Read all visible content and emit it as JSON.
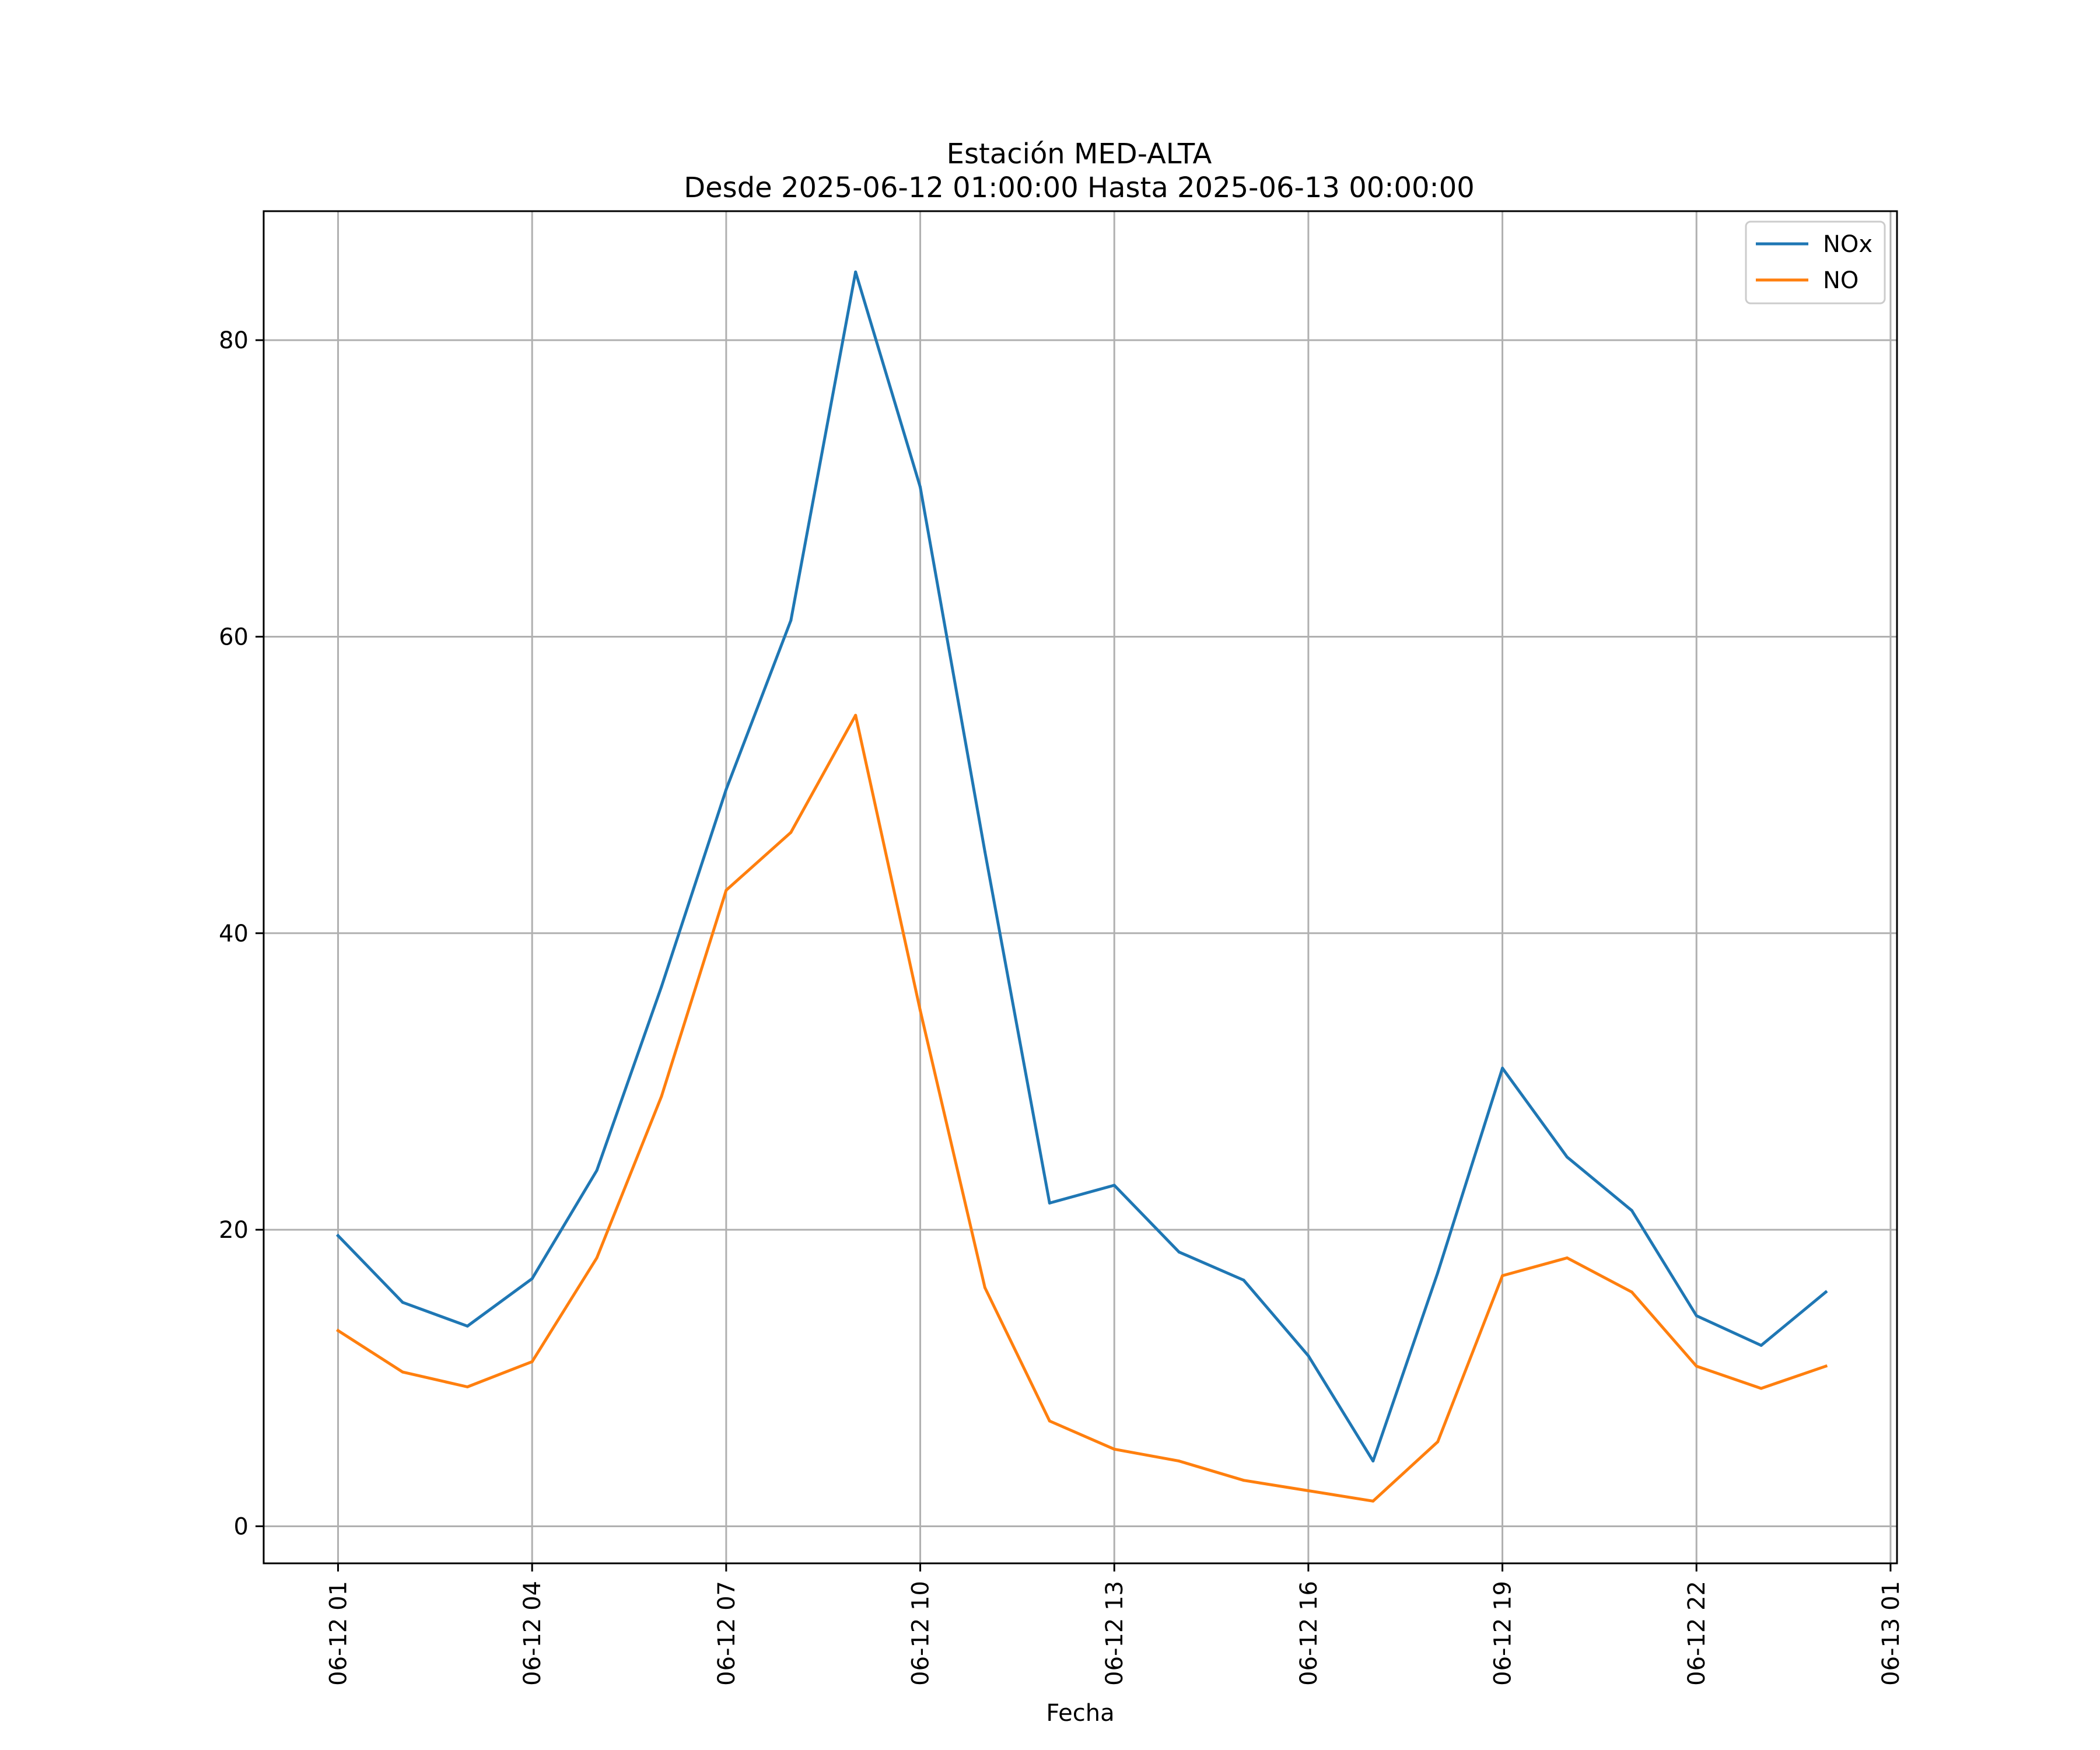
{
  "chart_data": {
    "type": "line",
    "title": "Estación MED-ALTA",
    "subtitle": "Desde 2025-06-12 01:00:00 Hasta 2025-06-13 00:00:00",
    "xlabel": "Fecha",
    "ylabel": "",
    "x": [
      "06-12 01",
      "06-12 02",
      "06-12 03",
      "06-12 04",
      "06-12 05",
      "06-12 06",
      "06-12 07",
      "06-12 08",
      "06-12 09",
      "06-12 10",
      "06-12 11",
      "06-12 12",
      "06-12 13",
      "06-12 14",
      "06-12 15",
      "06-12 16",
      "06-12 17",
      "06-12 18",
      "06-12 19",
      "06-12 20",
      "06-12 21",
      "06-12 22",
      "06-12 23",
      "06-13 00"
    ],
    "x_hours": [
      1,
      2,
      3,
      4,
      5,
      6,
      7,
      8,
      9,
      10,
      11,
      12,
      13,
      14,
      15,
      16,
      17,
      18,
      19,
      20,
      21,
      22,
      23,
      24
    ],
    "xlim_hours": [
      -0.15,
      25.1
    ],
    "xticks_hours": [
      1,
      4,
      7,
      10,
      13,
      16,
      19,
      22,
      25
    ],
    "xtick_labels": [
      "06-12 01",
      "06-12 04",
      "06-12 07",
      "06-12 10",
      "06-12 13",
      "06-12 16",
      "06-12 19",
      "06-12 22",
      "06-13 01"
    ],
    "ylim": [
      -2.5,
      88.7
    ],
    "yticks": [
      0,
      20,
      40,
      60,
      80
    ],
    "ytick_labels": [
      "0",
      "20",
      "40",
      "60",
      "80"
    ],
    "grid": true,
    "legend_position": "top-right",
    "series": [
      {
        "name": "NOx",
        "color": "#1f77b4",
        "values": [
          19.6,
          15.1,
          13.5,
          16.7,
          24.0,
          36.4,
          49.7,
          61.1,
          84.6,
          70.1,
          45.5,
          21.8,
          23.0,
          18.5,
          16.6,
          11.5,
          4.4,
          17.1,
          30.9,
          24.9,
          21.3,
          14.2,
          12.2,
          15.8
        ]
      },
      {
        "name": "NO",
        "color": "#ff7f0e",
        "values": [
          13.2,
          10.4,
          9.4,
          11.1,
          18.1,
          29.0,
          42.9,
          46.8,
          54.7,
          34.8,
          16.1,
          7.1,
          5.2,
          4.4,
          3.1,
          2.4,
          1.7,
          5.7,
          16.9,
          18.1,
          15.8,
          10.8,
          9.3,
          10.8
        ]
      }
    ]
  }
}
